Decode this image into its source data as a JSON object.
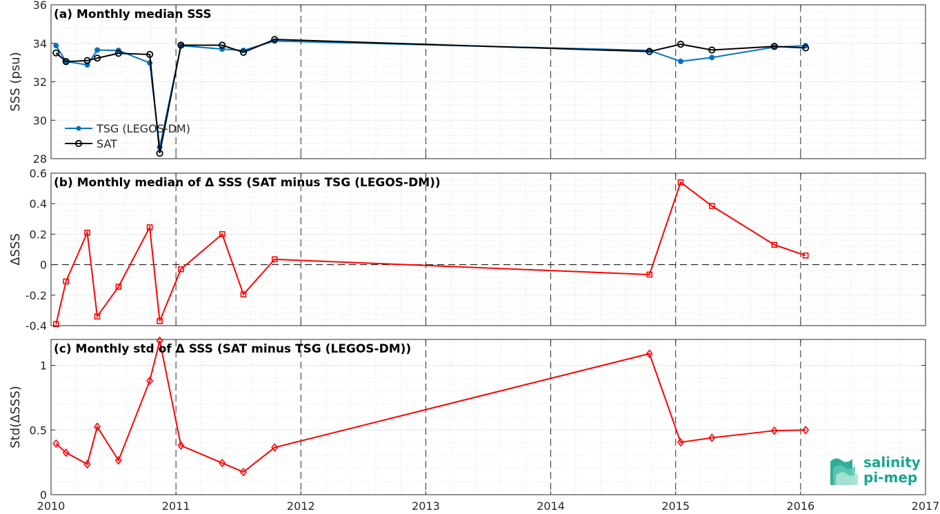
{
  "chart_data": [
    {
      "type": "line",
      "title": "(a) Monthly median SSS",
      "ylabel": "SSS (psu)",
      "ylim": [
        28,
        36
      ],
      "yticks": [
        28,
        30,
        32,
        34,
        36
      ],
      "xlim": [
        2010,
        2017
      ],
      "xticks": [
        2010,
        2011,
        2012,
        2013,
        2014,
        2015,
        2016,
        2017
      ],
      "grid": true,
      "legend": "bottom-left",
      "series": [
        {
          "name": "TSG (LEGOS-DM)",
          "color": "#0072BD",
          "marker": "filled-circle",
          "x": [
            2010.04,
            2010.12,
            2010.29,
            2010.37,
            2010.54,
            2010.79,
            2010.87,
            2011.04,
            2011.37,
            2011.54,
            2011.79,
            2014.79,
            2015.04,
            2015.29,
            2015.79,
            2016.04
          ],
          "y": [
            33.88,
            33.05,
            32.88,
            33.65,
            33.63,
            32.98,
            28.6,
            33.88,
            33.7,
            33.63,
            34.12,
            33.63,
            33.06,
            33.26,
            33.8,
            33.88
          ]
        },
        {
          "name": "SAT",
          "color": "#000000",
          "marker": "open-circle",
          "x": [
            2010.04,
            2010.12,
            2010.29,
            2010.37,
            2010.54,
            2010.79,
            2010.87,
            2011.04,
            2011.37,
            2011.54,
            2011.79,
            2014.79,
            2015.04,
            2015.29,
            2015.79,
            2016.04
          ],
          "y": [
            33.5,
            33.05,
            33.1,
            33.23,
            33.48,
            33.42,
            28.28,
            33.9,
            33.9,
            33.53,
            34.2,
            33.57,
            33.95,
            33.65,
            33.84,
            33.76
          ]
        }
      ]
    },
    {
      "type": "line",
      "title": "(b) Monthly median of Δ SSS (SAT minus TSG (LEGOS-DM))",
      "ylabel": "ΔSSS",
      "ylim": [
        -0.4,
        0.6
      ],
      "yticks": [
        -0.4,
        -0.2,
        0,
        0.2,
        0.4,
        0.6
      ],
      "ytick_labels": [
        "-0.4",
        "-0.2",
        "0",
        "0.2",
        "0.4",
        "0.6"
      ],
      "xlim": [
        2010,
        2017
      ],
      "xticks": [
        2010,
        2011,
        2012,
        2013,
        2014,
        2015,
        2016,
        2017
      ],
      "grid": true,
      "zero_line": "dashed",
      "series": [
        {
          "color": "#ff0000",
          "marker": "open-square",
          "x": [
            2010.04,
            2010.12,
            2010.29,
            2010.37,
            2010.54,
            2010.79,
            2010.87,
            2011.04,
            2011.37,
            2011.54,
            2011.79,
            2014.79,
            2015.04,
            2015.29,
            2015.79,
            2016.04
          ],
          "y": [
            -0.39,
            -0.11,
            0.21,
            -0.34,
            -0.145,
            0.245,
            -0.37,
            -0.03,
            0.2,
            -0.195,
            0.035,
            -0.065,
            0.54,
            0.385,
            0.13,
            0.06
          ]
        }
      ]
    },
    {
      "type": "line",
      "title": "(c) Monthly std of Δ SSS (SAT minus TSG (LEGOS-DM))",
      "ylabel": "Std(ΔSSS)",
      "ylim": [
        0,
        1.2
      ],
      "yticks": [
        0,
        0.5,
        1
      ],
      "ytick_labels": [
        "0",
        "0.5",
        "1"
      ],
      "xlim": [
        2010,
        2017
      ],
      "xticks": [
        2010,
        2011,
        2012,
        2013,
        2014,
        2015,
        2016,
        2017
      ],
      "xtick_labels": [
        "2010",
        "2011",
        "2012",
        "2013",
        "2014",
        "2015",
        "2016",
        "2017"
      ],
      "grid": true,
      "series": [
        {
          "color": "#ff0000",
          "marker": "open-diamond",
          "x": [
            2010.04,
            2010.12,
            2010.29,
            2010.37,
            2010.54,
            2010.79,
            2010.87,
            2011.04,
            2011.37,
            2011.54,
            2011.79,
            2014.79,
            2015.04,
            2015.29,
            2015.79,
            2016.04
          ],
          "y": [
            0.395,
            0.325,
            0.235,
            0.525,
            0.265,
            0.88,
            1.19,
            0.38,
            0.245,
            0.175,
            0.365,
            1.09,
            0.405,
            0.44,
            0.495,
            0.5
          ]
        }
      ]
    }
  ],
  "logo": {
    "line1": "salinity",
    "line2": "pi-mep",
    "color": "#1aa58f"
  }
}
